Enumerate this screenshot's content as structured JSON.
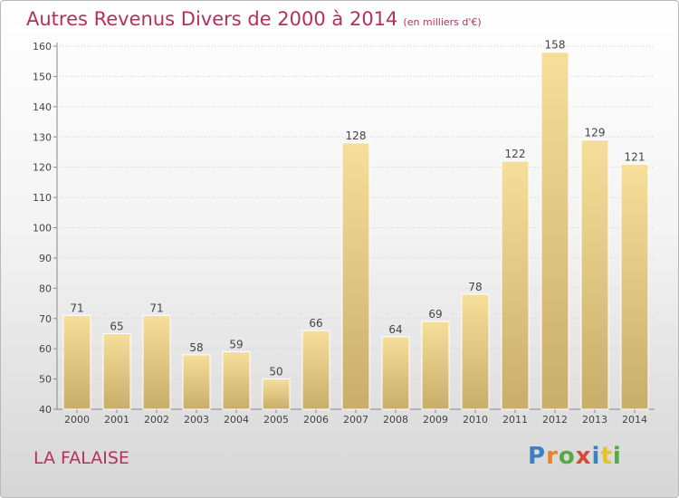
{
  "header": {
    "title": "Autres Revenus Divers de 2000 à 2014",
    "subtitle": "(en milliers d'€)"
  },
  "footer": {
    "place": "LA FALAISE",
    "logo_text": "Proxiti"
  },
  "colors": {
    "title": "#b5305a",
    "bar_light": "#f6df9a",
    "bar_dark": "#c9ad6b"
  },
  "chart_data": {
    "type": "bar",
    "categories": [
      "2000",
      "2001",
      "2002",
      "2003",
      "2004",
      "2005",
      "2006",
      "2007",
      "2008",
      "2009",
      "2010",
      "2011",
      "2012",
      "2013",
      "2014"
    ],
    "values": [
      71,
      65,
      71,
      58,
      59,
      50,
      66,
      128,
      64,
      69,
      78,
      122,
      158,
      129,
      121
    ],
    "ylim": [
      40,
      160
    ],
    "yticks": [
      40,
      50,
      60,
      70,
      80,
      90,
      100,
      110,
      120,
      130,
      140,
      150,
      160
    ],
    "grid": true
  }
}
